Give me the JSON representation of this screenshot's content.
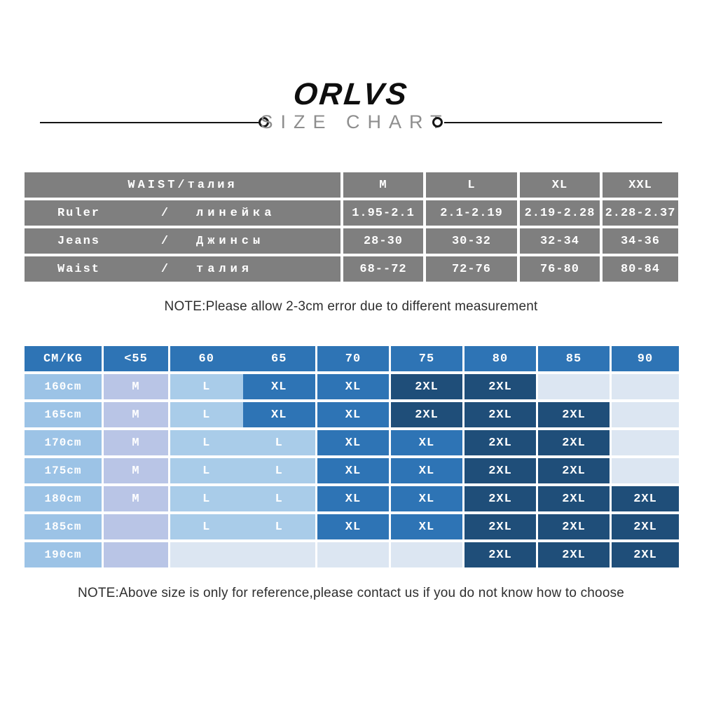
{
  "header": {
    "brand": "ORLVS",
    "subtitle": "SIZE CHART"
  },
  "waistTable": {
    "headerLabel": "WAIST/талия",
    "columns": [
      "M",
      "L",
      "XL",
      "XXL"
    ],
    "rows": [
      {
        "en": "Ruler",
        "slash": "/",
        "ru": "линейка",
        "values": [
          "1.95-2.1",
          "2.1-2.19",
          "2.19-2.28",
          "2.28-2.37"
        ]
      },
      {
        "en": "Jeans",
        "slash": "/",
        "ru": "Джинсы",
        "values": [
          "28-30",
          "30-32",
          "32-34",
          "34-36"
        ]
      },
      {
        "en": "Waist",
        "slash": "/",
        "ru": "талия",
        "values": [
          "68--72",
          "72-76",
          "76-80",
          "80-84"
        ]
      }
    ]
  },
  "notes": {
    "measurement": "NOTE:Please allow 2-3cm error due to different measurement",
    "reference": "NOTE:Above size is only for reference,please contact us if you do not know how to choose"
  },
  "sizeTable": {
    "header": {
      "label": {
        "t": "CM/KG",
        "k": "hdr"
      },
      "c55": {
        "t": "<55",
        "k": "hdr"
      },
      "c60": {
        "t": "60",
        "k": "hdr"
      },
      "c65": {
        "t": "65",
        "k": "hdr"
      },
      "c70": {
        "t": "70",
        "k": "hdr"
      },
      "c75": {
        "t": "75",
        "k": "hdr"
      },
      "c80": {
        "t": "80",
        "k": "hdr"
      },
      "c85": {
        "t": "85",
        "k": "hdr"
      },
      "c90": {
        "t": "90",
        "k": "hdr"
      }
    },
    "rows": [
      {
        "label": {
          "t": "160cm",
          "k": "label"
        },
        "c55": {
          "t": "M",
          "k": "m"
        },
        "c60": {
          "t": "L",
          "k": "l"
        },
        "c65": {
          "t": "XL",
          "k": "xl"
        },
        "c70": {
          "t": "XL",
          "k": "xl"
        },
        "c75": {
          "t": "2XL",
          "k": "2xl"
        },
        "c80": {
          "t": "2XL",
          "k": "2xl"
        },
        "c85": {
          "t": "",
          "k": "empty"
        },
        "c90": {
          "t": "",
          "k": "empty"
        }
      },
      {
        "label": {
          "t": "165cm",
          "k": "label"
        },
        "c55": {
          "t": "M",
          "k": "m"
        },
        "c60": {
          "t": "L",
          "k": "l"
        },
        "c65": {
          "t": "XL",
          "k": "xl"
        },
        "c70": {
          "t": "XL",
          "k": "xl"
        },
        "c75": {
          "t": "2XL",
          "k": "2xl"
        },
        "c80": {
          "t": "2XL",
          "k": "2xl"
        },
        "c85": {
          "t": "2XL",
          "k": "2xl"
        },
        "c90": {
          "t": "",
          "k": "empty"
        }
      },
      {
        "label": {
          "t": "170cm",
          "k": "label"
        },
        "c55": {
          "t": "M",
          "k": "m"
        },
        "c60": {
          "t": "L",
          "k": "l"
        },
        "c65": {
          "t": "L",
          "k": "l"
        },
        "c70": {
          "t": "XL",
          "k": "xl"
        },
        "c75": {
          "t": "XL",
          "k": "xl"
        },
        "c80": {
          "t": "2XL",
          "k": "2xl"
        },
        "c85": {
          "t": "2XL",
          "k": "2xl"
        },
        "c90": {
          "t": "",
          "k": "empty"
        }
      },
      {
        "label": {
          "t": "175cm",
          "k": "label"
        },
        "c55": {
          "t": "M",
          "k": "m"
        },
        "c60": {
          "t": "L",
          "k": "l"
        },
        "c65": {
          "t": "L",
          "k": "l"
        },
        "c70": {
          "t": "XL",
          "k": "xl"
        },
        "c75": {
          "t": "XL",
          "k": "xl"
        },
        "c80": {
          "t": "2XL",
          "k": "2xl"
        },
        "c85": {
          "t": "2XL",
          "k": "2xl"
        },
        "c90": {
          "t": "",
          "k": "empty"
        }
      },
      {
        "label": {
          "t": "180cm",
          "k": "label"
        },
        "c55": {
          "t": "M",
          "k": "m"
        },
        "c60": {
          "t": "L",
          "k": "l"
        },
        "c65": {
          "t": "L",
          "k": "l"
        },
        "c70": {
          "t": "XL",
          "k": "xl"
        },
        "c75": {
          "t": "XL",
          "k": "xl"
        },
        "c80": {
          "t": "2XL",
          "k": "2xl"
        },
        "c85": {
          "t": "2XL",
          "k": "2xl"
        },
        "c90": {
          "t": "2XL",
          "k": "2xl"
        }
      },
      {
        "label": {
          "t": "185cm",
          "k": "label"
        },
        "c55": {
          "t": "",
          "k": "emptylav"
        },
        "c60": {
          "t": "L",
          "k": "l"
        },
        "c65": {
          "t": "L",
          "k": "l"
        },
        "c70": {
          "t": "XL",
          "k": "xl"
        },
        "c75": {
          "t": "XL",
          "k": "xl"
        },
        "c80": {
          "t": "2XL",
          "k": "2xl"
        },
        "c85": {
          "t": "2XL",
          "k": "2xl"
        },
        "c90": {
          "t": "2XL",
          "k": "2xl"
        }
      },
      {
        "label": {
          "t": "190cm",
          "k": "label"
        },
        "c55": {
          "t": "",
          "k": "emptylav"
        },
        "c60": {
          "t": "",
          "k": "empty"
        },
        "c65": {
          "t": "",
          "k": "empty"
        },
        "c70": {
          "t": "",
          "k": "empty"
        },
        "c75": {
          "t": "",
          "k": "empty"
        },
        "c80": {
          "t": "2XL",
          "k": "2xl"
        },
        "c85": {
          "t": "2XL",
          "k": "2xl"
        },
        "c90": {
          "t": "2XL",
          "k": "2xl"
        }
      }
    ]
  },
  "colors": {
    "gray_cell": "#7f7f7f",
    "header_blue": "#2e74b5",
    "size_m_lavender": "#b9c5e6",
    "size_l_light_blue": "#a9cce9",
    "size_xl_blue": "#2e74b5",
    "size_2xl_navy": "#1f4e79",
    "height_label_blue": "#9cc3e6",
    "empty_cell_light": "#dce6f2"
  }
}
